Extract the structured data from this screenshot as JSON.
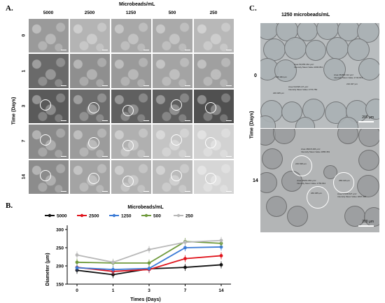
{
  "panels": {
    "a": "A.",
    "b": "B.",
    "c": "C."
  },
  "grid": {
    "header": "Microbeads/mL",
    "columns": [
      "5000",
      "2500",
      "1250",
      "500",
      "250"
    ],
    "row_axis_label": "Time (Days)",
    "rows": [
      "0",
      "1",
      "3",
      "7",
      "14"
    ],
    "shades": [
      [
        "#9a9a9a",
        "#b4b4b4",
        "#a8a8a8",
        "#aaaaaa",
        "#b8b8b8"
      ],
      [
        "#6a6a6a",
        "#8f8f8f",
        "#9a9a9a",
        "#a4a4a4",
        "#a0a0a0"
      ],
      [
        "#5a5a5a",
        "#6c6c6c",
        "#606060",
        "#5e5e5e",
        "#505050"
      ],
      [
        "#8a8a8a",
        "#9c9c9c",
        "#b0b0b0",
        "#c4c4c4",
        "#d2d2d2"
      ],
      [
        "#8c8c8c",
        "#a4a4a4",
        "#b2b2b2",
        "#bababa",
        "#d6d6d6"
      ]
    ]
  },
  "panel_c": {
    "title": "1250 microbeads/mL",
    "row_axis_label": "Time (Days)",
    "rows": [
      "0",
      "14"
    ],
    "scale_bar": "200 μm",
    "day0_annotations": [
      "Area 59,655.361 μm²\nIntensity Mean Value 2096.861",
      "Area 38,809.112 μm²\nIntensity Mean Value 1743.813",
      "Area 60,848.147 μm²\nIntensity Mean Value 1770.750",
      "230.064 μm",
      "210.047 μm",
      "226.025 μm"
    ],
    "day14_annotations": [
      "Area 48415.406 μm²\nIntensity Mean Value 1886.381",
      "246.638 μm",
      "Area 55461.891 μm²\nIntensity Mean Value 1756.842",
      "258.419 μm",
      "Area 57088.527 μm²\nIntensity Mean Value 1897.326",
      "266.365 μm"
    ]
  },
  "chart_data": {
    "type": "line",
    "title": "Microbeads/mL",
    "xlabel": "Times (Days)",
    "ylabel": "Diameter (μm)",
    "categories": [
      "0",
      "1",
      "3",
      "7",
      "14"
    ],
    "ylim": [
      150,
      300
    ],
    "yticks": [
      "150",
      "200",
      "250",
      "300"
    ],
    "grid": false,
    "legend_placement": "top",
    "series": [
      {
        "name": "5000",
        "color": "#111111",
        "values": [
          188,
          176,
          192,
          196,
          203
        ]
      },
      {
        "name": "2500",
        "color": "#e0141c",
        "values": [
          196,
          185,
          190,
          220,
          228
        ]
      },
      {
        "name": "1250",
        "color": "#3b7bd6",
        "values": [
          195,
          190,
          193,
          250,
          252
        ]
      },
      {
        "name": "500",
        "color": "#6f9a3c",
        "values": [
          210,
          208,
          208,
          267,
          262
        ]
      },
      {
        "name": "250",
        "color": "#b8b8b8",
        "values": [
          230,
          210,
          245,
          265,
          270
        ]
      }
    ]
  }
}
